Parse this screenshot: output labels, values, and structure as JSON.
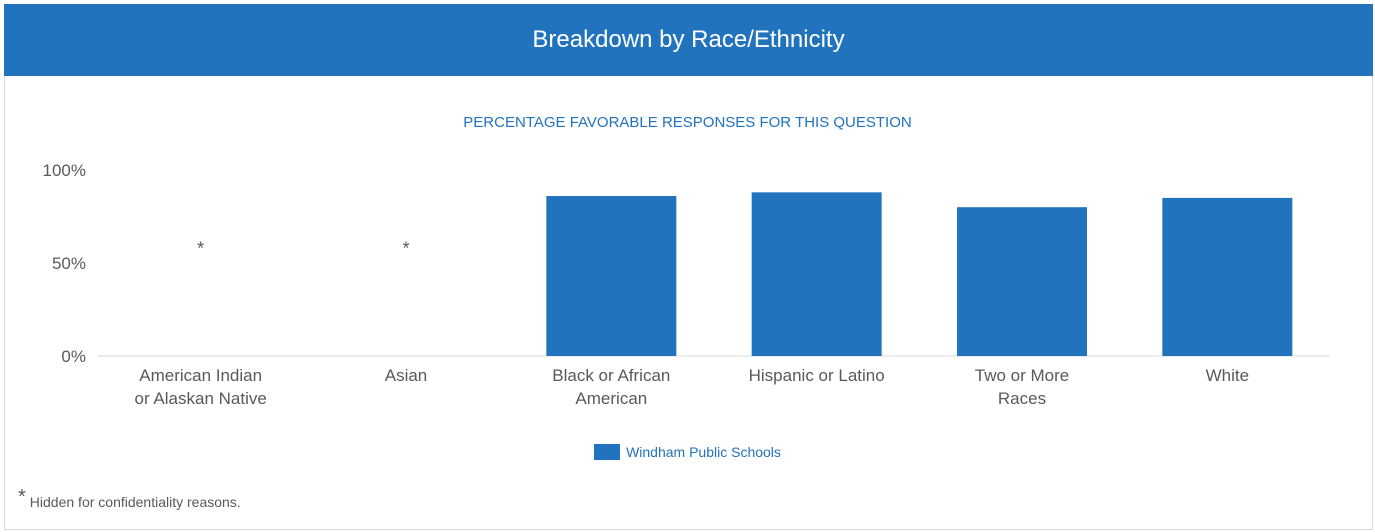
{
  "header": {
    "title": "Breakdown by Race/Ethnicity"
  },
  "chart_data": {
    "type": "bar",
    "title": "PERCENTAGE FAVORABLE RESPONSES FOR THIS QUESTION",
    "categories": [
      [
        "American Indian",
        "or Alaskan Native"
      ],
      [
        "Asian"
      ],
      [
        "Black or African",
        "American"
      ],
      [
        "Hispanic or Latino"
      ],
      [
        "Two or More",
        "Races"
      ],
      [
        "White"
      ]
    ],
    "series": [
      {
        "name": "Windham Public Schools",
        "values": [
          null,
          null,
          86,
          88,
          80,
          85
        ],
        "color": "#2173bd"
      }
    ],
    "hidden_marker": "*",
    "hidden_positions_value": 60,
    "ylim": [
      0,
      100
    ],
    "yticks": [
      "0%",
      "50%",
      "100%"
    ],
    "ytick_values": [
      0,
      50,
      100
    ],
    "grid": false,
    "legend_position": "bottom"
  },
  "footnote": {
    "marker": "*",
    "text": "Hidden for confidentiality reasons."
  }
}
